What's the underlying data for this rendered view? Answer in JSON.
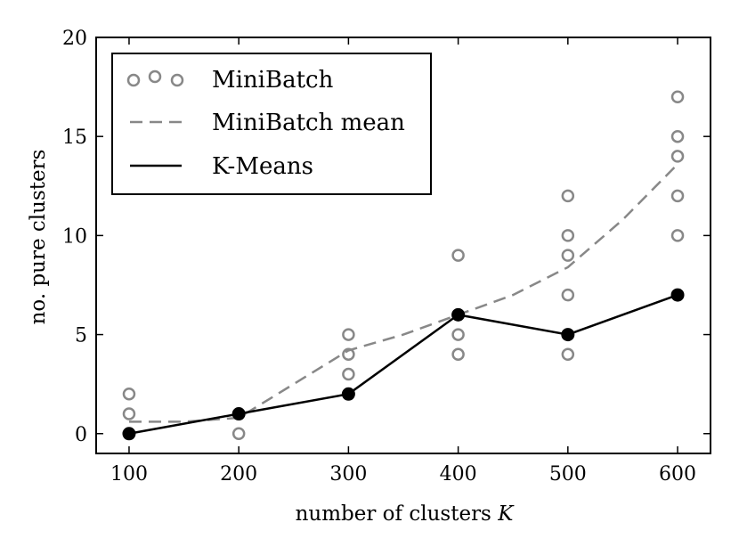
{
  "chart_data": {
    "type": "scatter",
    "xlabel": "number of clusters",
    "xlabel_var": "K",
    "ylabel": "no. pure clusters",
    "xlim": [
      70,
      630
    ],
    "ylim": [
      -1,
      20
    ],
    "xticks": [
      100,
      200,
      300,
      400,
      500,
      600
    ],
    "yticks": [
      0,
      5,
      10,
      15,
      20
    ],
    "grid": false,
    "legend_position": "top-left",
    "series": [
      {
        "name": "MiniBatch",
        "kind": "open-markers",
        "color": "#888888",
        "points": [
          [
            100,
            2
          ],
          [
            100,
            1
          ],
          [
            200,
            0
          ],
          [
            200,
            1
          ],
          [
            300,
            5
          ],
          [
            300,
            4
          ],
          [
            300,
            3
          ],
          [
            400,
            9
          ],
          [
            400,
            5
          ],
          [
            400,
            4
          ],
          [
            400,
            6
          ],
          [
            500,
            12
          ],
          [
            500,
            10
          ],
          [
            500,
            9
          ],
          [
            500,
            7
          ],
          [
            500,
            4
          ],
          [
            600,
            17
          ],
          [
            600,
            15
          ],
          [
            600,
            14
          ],
          [
            600,
            12
          ],
          [
            600,
            10
          ]
        ]
      },
      {
        "name": "MiniBatch mean",
        "kind": "dashed-curve",
        "color": "#888888",
        "points": [
          [
            100,
            0.6
          ],
          [
            150,
            0.6
          ],
          [
            200,
            0.8
          ],
          [
            250,
            2.5
          ],
          [
            300,
            4.2
          ],
          [
            350,
            5.0
          ],
          [
            400,
            6.0
          ],
          [
            450,
            7.0
          ],
          [
            500,
            8.4
          ],
          [
            550,
            10.8
          ],
          [
            600,
            13.6
          ]
        ]
      },
      {
        "name": "K-Means",
        "kind": "line-with-filled-markers",
        "color": "#000000",
        "points": [
          [
            100,
            0
          ],
          [
            200,
            1
          ],
          [
            300,
            2
          ],
          [
            400,
            6
          ],
          [
            500,
            5
          ],
          [
            600,
            7
          ]
        ]
      }
    ]
  }
}
